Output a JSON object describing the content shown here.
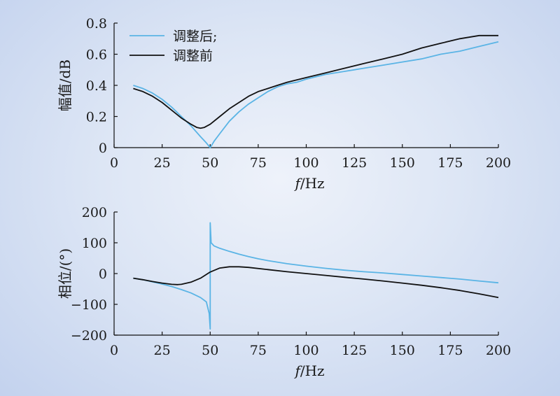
{
  "chart_data": [
    {
      "type": "line",
      "xlabel_italic": "f",
      "xlabel_rest": "/Hz",
      "ylabel": "幅值/dB",
      "xlim": [
        0,
        200
      ],
      "ylim": [
        0,
        0.8
      ],
      "xticks": [
        "0",
        "25",
        "50",
        "75",
        "100",
        "125",
        "150",
        "175",
        "200"
      ],
      "yticks": [
        "0",
        "0.2",
        "0.4",
        "0.6",
        "0.8"
      ],
      "legend": {
        "placement": "top-left"
      },
      "series": [
        {
          "name": "调整后;",
          "color": "#5ab4e5",
          "x": [
            10,
            15,
            20,
            25,
            30,
            35,
            40,
            45,
            48,
            50,
            52,
            55,
            60,
            65,
            70,
            75,
            80,
            85,
            90,
            95,
            100,
            110,
            120,
            130,
            140,
            150,
            160,
            170,
            180,
            190,
            200
          ],
          "y": [
            0.4,
            0.38,
            0.35,
            0.31,
            0.26,
            0.2,
            0.14,
            0.07,
            0.03,
            0.0,
            0.04,
            0.09,
            0.17,
            0.23,
            0.28,
            0.32,
            0.36,
            0.39,
            0.41,
            0.42,
            0.44,
            0.47,
            0.49,
            0.51,
            0.53,
            0.55,
            0.57,
            0.6,
            0.62,
            0.65,
            0.68
          ]
        },
        {
          "name": "调整前",
          "color": "#111111",
          "x": [
            10,
            15,
            20,
            25,
            30,
            35,
            40,
            43,
            45,
            47,
            50,
            55,
            60,
            65,
            70,
            75,
            80,
            85,
            90,
            95,
            100,
            110,
            120,
            130,
            140,
            150,
            160,
            170,
            180,
            190,
            195,
            200
          ],
          "y": [
            0.38,
            0.36,
            0.33,
            0.29,
            0.24,
            0.19,
            0.15,
            0.13,
            0.125,
            0.13,
            0.15,
            0.2,
            0.25,
            0.29,
            0.33,
            0.36,
            0.38,
            0.4,
            0.42,
            0.435,
            0.45,
            0.48,
            0.51,
            0.54,
            0.57,
            0.6,
            0.64,
            0.67,
            0.7,
            0.72,
            0.72,
            0.72
          ]
        }
      ]
    },
    {
      "type": "line",
      "xlabel_italic": "f",
      "xlabel_rest": "/Hz",
      "ylabel": "相位/(°)",
      "xlim": [
        0,
        200
      ],
      "ylim": [
        -200,
        200
      ],
      "xticks": [
        "0",
        "25",
        "50",
        "75",
        "100",
        "125",
        "150",
        "175",
        "200"
      ],
      "yticks": [
        "−200",
        "−100",
        "0",
        "100",
        "200"
      ],
      "series": [
        {
          "color": "#5ab4e5",
          "x": [
            10,
            15,
            20,
            25,
            30,
            35,
            40,
            45,
            48,
            49.5,
            50,
            50,
            50.5,
            52,
            55,
            60,
            65,
            70,
            75,
            80,
            90,
            100,
            110,
            120,
            130,
            140,
            150,
            160,
            170,
            180,
            190,
            200
          ],
          "y": [
            -15,
            -20,
            -27,
            -34,
            -42,
            -52,
            -63,
            -78,
            -92,
            -130,
            -180,
            165,
            100,
            90,
            82,
            72,
            63,
            55,
            48,
            42,
            32,
            24,
            17,
            11,
            6,
            2,
            -3,
            -8,
            -13,
            -18,
            -24,
            -30
          ]
        },
        {
          "color": "#111111",
          "x": [
            10,
            15,
            20,
            25,
            30,
            33,
            35,
            40,
            45,
            50,
            55,
            60,
            65,
            70,
            80,
            90,
            100,
            110,
            120,
            130,
            140,
            150,
            160,
            170,
            180,
            190,
            200
          ],
          "y": [
            -15,
            -20,
            -26,
            -31,
            -35,
            -36,
            -35,
            -28,
            -15,
            5,
            18,
            22,
            22,
            20,
            13,
            6,
            0,
            -6,
            -12,
            -18,
            -24,
            -31,
            -38,
            -46,
            -55,
            -66,
            -78
          ]
        }
      ]
    }
  ]
}
